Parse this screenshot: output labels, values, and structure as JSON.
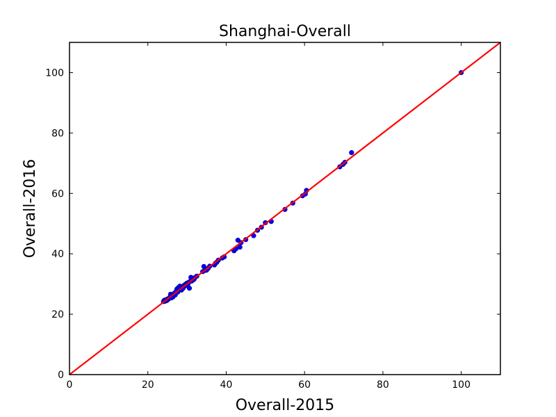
{
  "chart_data": {
    "type": "scatter",
    "title": "Shanghai-Overall",
    "xlabel": "Overall-2015",
    "ylabel": "Overall-2016",
    "xlim": [
      0,
      110
    ],
    "ylim": [
      0,
      110
    ],
    "xticks": [
      0,
      20,
      40,
      60,
      80,
      100
    ],
    "yticks": [
      0,
      20,
      40,
      60,
      80,
      100
    ],
    "grid": false,
    "colors": {
      "points": "#0000ff",
      "point_edge": "#000080",
      "reference_line": "#ff0000",
      "axes": "#000000"
    },
    "reference_line": {
      "from": [
        0,
        0
      ],
      "to": [
        110,
        110
      ]
    },
    "series": [
      {
        "points": [
          [
            24.0,
            24.2
          ],
          [
            24.2,
            24.6
          ],
          [
            24.4,
            24.3
          ],
          [
            24.6,
            24.8
          ],
          [
            24.8,
            24.5
          ],
          [
            25.0,
            25.0
          ],
          [
            25.2,
            24.9
          ],
          [
            25.4,
            25.3
          ],
          [
            25.6,
            25.6
          ],
          [
            25.8,
            26.6
          ],
          [
            26.0,
            25.4
          ],
          [
            26.2,
            26.2
          ],
          [
            26.4,
            25.7
          ],
          [
            26.6,
            26.6
          ],
          [
            26.8,
            27.0
          ],
          [
            27.0,
            26.4
          ],
          [
            27.2,
            27.5
          ],
          [
            27.4,
            28.3
          ],
          [
            27.6,
            27.3
          ],
          [
            27.8,
            28.8
          ],
          [
            28.0,
            27.9
          ],
          [
            28.2,
            29.3
          ],
          [
            28.4,
            28.4
          ],
          [
            28.6,
            28.0
          ],
          [
            28.8,
            29.0
          ],
          [
            29.0,
            28.6
          ],
          [
            29.2,
            29.5
          ],
          [
            29.4,
            29.3
          ],
          [
            29.6,
            29.9
          ],
          [
            29.8,
            29.6
          ],
          [
            30.0,
            30.3
          ],
          [
            30.2,
            29.8
          ],
          [
            30.4,
            30.5
          ],
          [
            30.6,
            28.6
          ],
          [
            30.8,
            30.9
          ],
          [
            31.0,
            32.2
          ],
          [
            31.2,
            31.0
          ],
          [
            31.5,
            31.3
          ],
          [
            31.8,
            31.6
          ],
          [
            32.0,
            32.1
          ],
          [
            32.5,
            32.6
          ],
          [
            34.0,
            34.1
          ],
          [
            34.3,
            35.8
          ],
          [
            34.6,
            34.5
          ],
          [
            35.0,
            34.6
          ],
          [
            35.4,
            35.2
          ],
          [
            35.8,
            35.9
          ],
          [
            37.0,
            36.3
          ],
          [
            37.3,
            36.9
          ],
          [
            37.6,
            37.2
          ],
          [
            38.0,
            37.9
          ],
          [
            39.0,
            38.6
          ],
          [
            39.5,
            39.0
          ],
          [
            42.0,
            41.0
          ],
          [
            42.5,
            41.7
          ],
          [
            43.0,
            44.5
          ],
          [
            43.5,
            42.2
          ],
          [
            43.8,
            43.7
          ],
          [
            45.0,
            44.7
          ],
          [
            47.0,
            46.0
          ],
          [
            48.0,
            47.8
          ],
          [
            49.0,
            48.8
          ],
          [
            50.0,
            50.3
          ],
          [
            51.5,
            50.7
          ],
          [
            55.0,
            54.7
          ],
          [
            57.0,
            56.8
          ],
          [
            59.5,
            59.2
          ],
          [
            60.2,
            59.8
          ],
          [
            60.5,
            61.0
          ],
          [
            69.0,
            68.8
          ],
          [
            69.8,
            69.6
          ],
          [
            70.3,
            70.3
          ],
          [
            72.0,
            73.5
          ],
          [
            100.0,
            100.0
          ]
        ]
      }
    ]
  }
}
